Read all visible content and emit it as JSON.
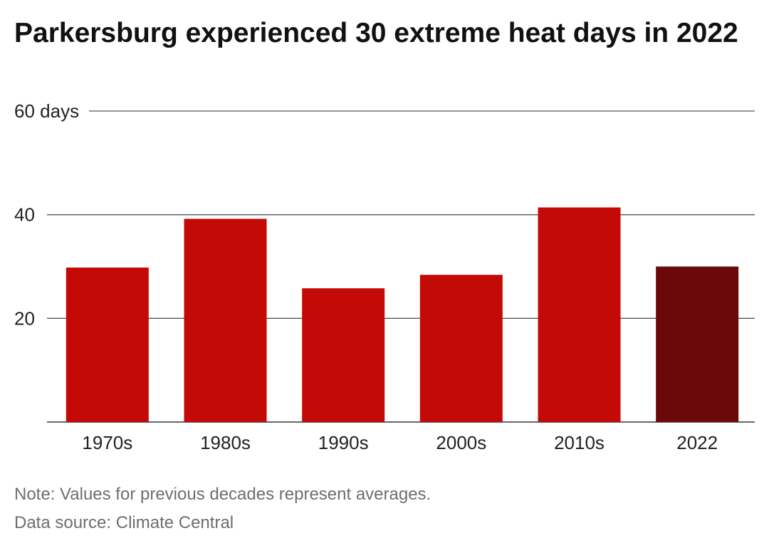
{
  "title": "Parkersburg experienced 30 extreme heat days in 2022",
  "notes": {
    "note": "Note: Values for previous decades represent averages.",
    "source": "Data source: Climate Central"
  },
  "colors": {
    "bar": "#c40a07",
    "highlight": "#6b0809",
    "gridline": "#555555",
    "text": "#222222"
  },
  "chart_data": {
    "type": "bar",
    "categories": [
      "1970s",
      "1980s",
      "1990s",
      "2000s",
      "2010s",
      "2022"
    ],
    "values": [
      29.8,
      39.2,
      25.8,
      28.4,
      41.4,
      30
    ],
    "highlight_category": "2022",
    "ylim": [
      0,
      60
    ],
    "yticks": [
      20,
      40,
      60
    ],
    "ytick_labels": [
      "20",
      "40",
      "60 days"
    ],
    "grid": true,
    "legend": "none"
  }
}
